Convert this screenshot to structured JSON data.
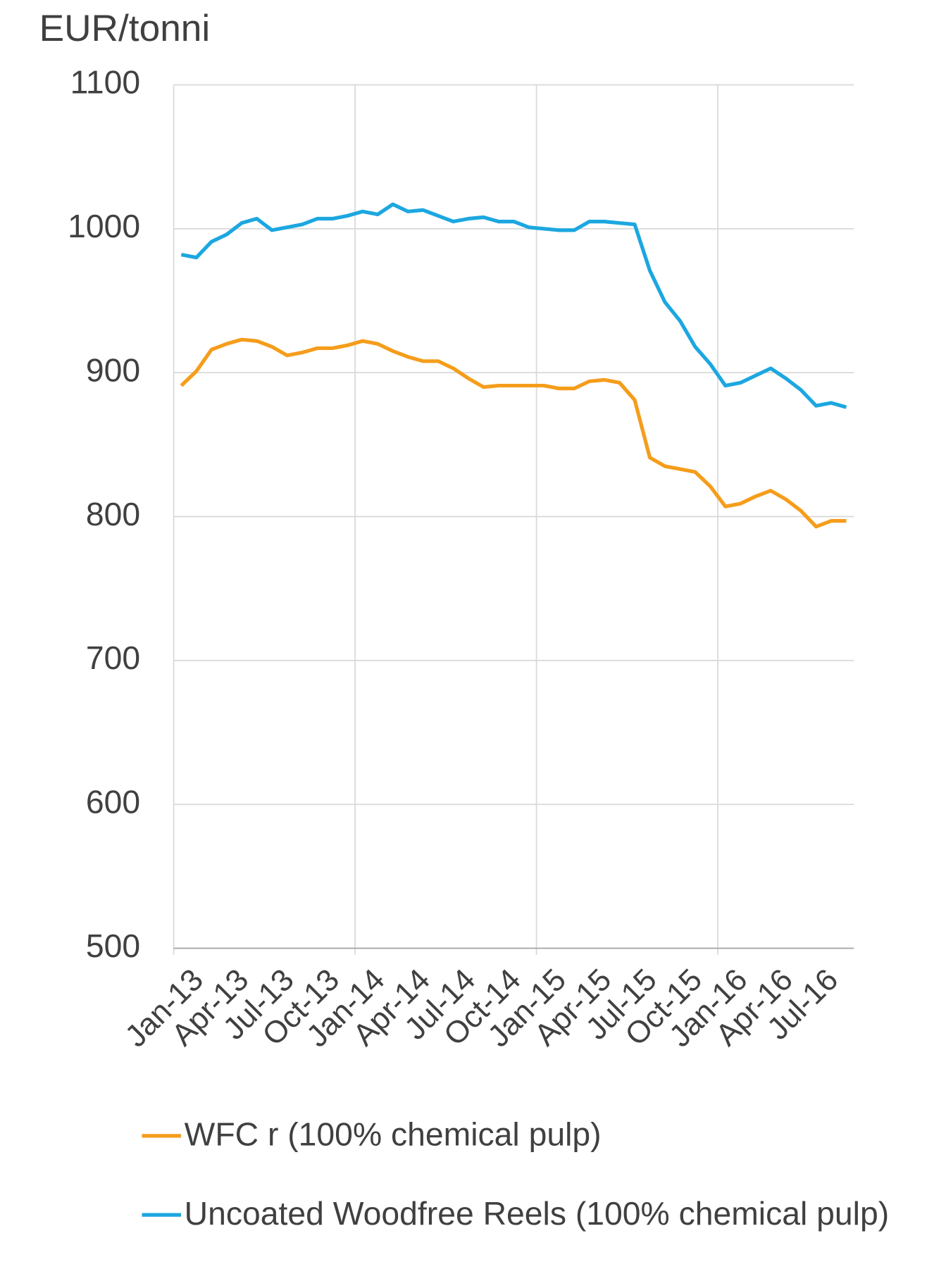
{
  "chart_data": {
    "type": "line",
    "ylabel": "EUR/tonni",
    "categories": [
      "Jan-13",
      null,
      null,
      "Apr-13",
      null,
      null,
      "Jul-13",
      null,
      null,
      "Oct-13",
      null,
      null,
      "Jan-14",
      null,
      null,
      "Apr-14",
      null,
      null,
      "Jul-14",
      null,
      null,
      "Oct-14",
      null,
      null,
      "Jan-15",
      null,
      null,
      "Apr-15",
      null,
      null,
      "Jul-15",
      null,
      null,
      "Oct-15",
      null,
      null,
      "Jan-16",
      null,
      null,
      "Apr-16",
      null,
      null,
      "Jul-16",
      null,
      null
    ],
    "series": [
      {
        "name": "WFC r (100%  chemical pulp)",
        "color": "#f59d1b",
        "values": [
          891,
          901,
          916,
          920,
          923,
          922,
          918,
          912,
          914,
          917,
          917,
          919,
          922,
          920,
          915,
          911,
          908,
          908,
          903,
          896,
          890,
          891,
          891,
          891,
          891,
          889,
          889,
          894,
          895,
          893,
          881,
          841,
          835,
          833,
          831,
          821,
          807,
          809,
          814,
          818,
          812,
          804,
          793,
          797,
          797
        ]
      },
      {
        "name": "Uncoated Woodfree Reels (100% chemical pulp)",
        "color": "#1ca7e0",
        "values": [
          982,
          980,
          991,
          996,
          1004,
          1007,
          999,
          1001,
          1003,
          1007,
          1007,
          1009,
          1012,
          1010,
          1017,
          1012,
          1013,
          1009,
          1005,
          1007,
          1008,
          1005,
          1005,
          1001,
          1000,
          999,
          999,
          1005,
          1005,
          1004,
          1003,
          971,
          949,
          936,
          918,
          906,
          891,
          893,
          898,
          903,
          896,
          888,
          877,
          879,
          876
        ]
      }
    ],
    "ylim": [
      500,
      1100
    ],
    "yticks": [
      500,
      600,
      700,
      800,
      900,
      1000,
      1100
    ],
    "grid": true
  }
}
